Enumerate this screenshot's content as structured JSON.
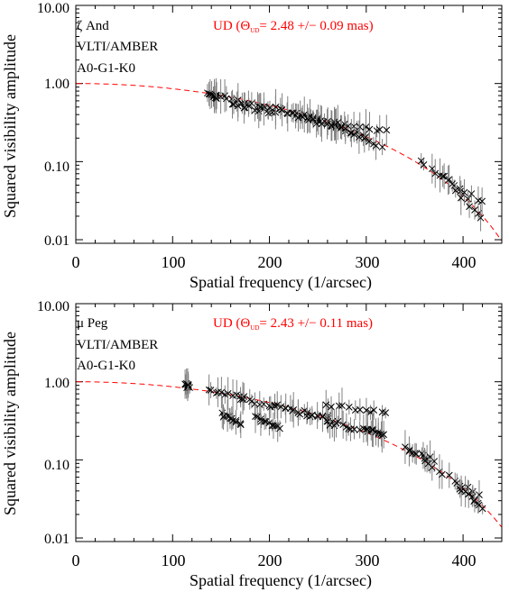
{
  "chart_data": [
    {
      "type": "scatter",
      "panel": "top",
      "xlabel": "Spatial frequency (1/arcsec)",
      "ylabel": "Squared visibility amplitude",
      "xlim": [
        0,
        440
      ],
      "ylim": [
        0.009,
        10.0
      ],
      "yscale": "log",
      "x_ticks": [
        0,
        100,
        200,
        300,
        400
      ],
      "x_tick_labels": [
        "0",
        "100",
        "200",
        "300",
        "400"
      ],
      "y_ticks": [
        0.01,
        0.1,
        1.0,
        10.0
      ],
      "y_tick_labels": [
        "0.01",
        "0.10",
        "1.00",
        "10.00"
      ],
      "annotations": {
        "star": "ζ And",
        "instrument": "VLTI/AMBER",
        "spectral": "A0-G1-K0",
        "fit_prefix": "UD (",
        "fit_symbol": "Θ",
        "fit_sub": "UD",
        "fit_value": "= 2.48 +/−  0.09 mas)"
      },
      "colors": {
        "model": "#ff0000",
        "data": "#000000",
        "errorbar": "#808080"
      },
      "model": {
        "type": "uniform-disk",
        "theta_mas": 2.48,
        "line_style": "dashed"
      },
      "series": [
        {
          "clusters": [
            {
              "x": [
                138,
                146
              ],
              "y": [
                0.72,
                0.67
              ]
            },
            {
              "x": [
                150,
                190
              ],
              "y": [
                0.7,
                0.5
              ]
            },
            {
              "x": [
                160,
                205
              ],
              "y": [
                0.55,
                0.42
              ]
            },
            {
              "x": [
                190,
                250
              ],
              "y": [
                0.5,
                0.35
              ]
            },
            {
              "x": [
                205,
                255
              ],
              "y": [
                0.48,
                0.33
              ]
            },
            {
              "x": [
                230,
                275
              ],
              "y": [
                0.38,
                0.28
              ]
            },
            {
              "x": [
                245,
                300
              ],
              "y": [
                0.33,
                0.22
              ]
            },
            {
              "x": [
                260,
                320
              ],
              "y": [
                0.32,
                0.24
              ]
            },
            {
              "x": [
                265,
                315
              ],
              "y": [
                0.3,
                0.16
              ]
            },
            {
              "x": [
                355,
                420
              ],
              "y": [
                0.1,
                0.03
              ]
            },
            {
              "x": [
                375,
                420
              ],
              "y": [
                0.07,
                0.02
              ]
            }
          ]
        }
      ]
    },
    {
      "type": "scatter",
      "panel": "bottom",
      "xlabel": "Spatial frequency (1/arcsec)",
      "ylabel": "Squared visibility amplitude",
      "xlim": [
        0,
        440
      ],
      "ylim": [
        0.009,
        10.0
      ],
      "yscale": "log",
      "x_ticks": [
        0,
        100,
        200,
        300,
        400
      ],
      "x_tick_labels": [
        "0",
        "100",
        "200",
        "300",
        "400"
      ],
      "y_ticks": [
        0.01,
        0.1,
        1.0,
        10.0
      ],
      "y_tick_labels": [
        "0.01",
        "0.10",
        "1.00",
        "10.00"
      ],
      "annotations": {
        "star": "μ Peg",
        "instrument": "VLTI/AMBER",
        "spectral": "A0-G1-K0",
        "fit_prefix": "UD (",
        "fit_symbol": "Θ",
        "fit_sub": "UD",
        "fit_value": "= 2.43 +/−  0.11 mas)"
      },
      "colors": {
        "model": "#ff0000",
        "data": "#000000",
        "errorbar": "#808080"
      },
      "model": {
        "type": "uniform-disk",
        "theta_mas": 2.43,
        "line_style": "dashed"
      },
      "series": [
        {
          "clusters": [
            {
              "x": [
                113,
                118
              ],
              "y": [
                0.9,
                0.88
              ]
            },
            {
              "x": [
                138,
                175
              ],
              "y": [
                0.75,
                0.62
              ]
            },
            {
              "x": [
                150,
                170
              ],
              "y": [
                0.4,
                0.28
              ]
            },
            {
              "x": [
                170,
                215
              ],
              "y": [
                0.62,
                0.45
              ]
            },
            {
              "x": [
                185,
                210
              ],
              "y": [
                0.35,
                0.25
              ]
            },
            {
              "x": [
                205,
                260
              ],
              "y": [
                0.5,
                0.35
              ]
            },
            {
              "x": [
                225,
                270
              ],
              "y": [
                0.42,
                0.3
              ]
            },
            {
              "x": [
                260,
                320
              ],
              "y": [
                0.5,
                0.4
              ]
            },
            {
              "x": [
                260,
                300
              ],
              "y": [
                0.3,
                0.24
              ]
            },
            {
              "x": [
                300,
                320
              ],
              "y": [
                0.25,
                0.2
              ]
            },
            {
              "x": [
                340,
                370
              ],
              "y": [
                0.14,
                0.1
              ]
            },
            {
              "x": [
                360,
                415
              ],
              "y": [
                0.1,
                0.035
              ]
            },
            {
              "x": [
                395,
                420
              ],
              "y": [
                0.045,
                0.025
              ]
            }
          ]
        }
      ]
    }
  ]
}
